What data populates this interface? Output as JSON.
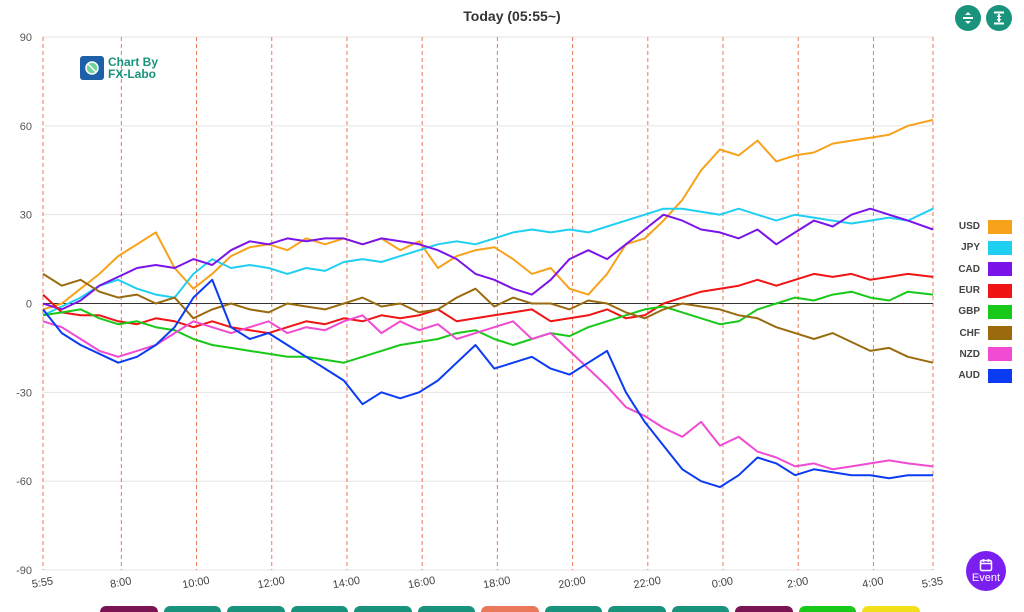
{
  "header": {
    "title": "Today  (05:55~)"
  },
  "logo": {
    "line1": "Chart By",
    "line2": "FX-Labo"
  },
  "toolbar": {
    "btn1_icon": "split-vertical-icon",
    "btn2_icon": "expand-vertical-icon"
  },
  "event_button": {
    "label": "Event",
    "icon": "calendar-icon"
  },
  "colors": {
    "USD": "#f7a21b",
    "JPY": "#1fd0f2",
    "CAD": "#7a14ea",
    "EUR": "#f01414",
    "GBP": "#18c91a",
    "CHF": "#9a6b0e",
    "NZD": "#f04bd2",
    "AUD": "#0b3cf2",
    "accent": "#19937c",
    "grid_vertical": "#e9795a"
  },
  "legend": [
    "USD",
    "JPY",
    "CAD",
    "EUR",
    "GBP",
    "CHF",
    "NZD",
    "AUD"
  ],
  "chart_data": {
    "type": "line",
    "title": "Today  (05:55~)",
    "xlabel": "",
    "ylabel": "",
    "ylim": [
      -90,
      90
    ],
    "yticks": [
      90,
      60,
      30,
      0,
      -30,
      -60,
      -90
    ],
    "xticks": [
      "5:55",
      "8:00",
      "10:00",
      "12:00",
      "14:00",
      "16:00",
      "18:00",
      "20:00",
      "22:00",
      "0:00",
      "2:00",
      "4:00",
      "5:35"
    ],
    "xtick_hours": [
      0,
      2.083,
      4.083,
      6.083,
      8.083,
      10.083,
      12.083,
      14.083,
      16.083,
      18.083,
      20.083,
      22.083,
      23.667
    ],
    "x_range_hours": [
      0,
      23.667
    ],
    "grid": true,
    "legend_position": "right",
    "series": [
      {
        "name": "USD",
        "x": [
          0,
          0.5,
          1,
          1.5,
          2,
          2.5,
          3,
          3.5,
          4,
          4.5,
          5,
          5.5,
          6,
          6.5,
          7,
          7.5,
          8,
          8.5,
          9,
          9.5,
          10,
          10.5,
          11,
          11.5,
          12,
          12.5,
          13,
          13.5,
          14,
          14.5,
          15,
          15.5,
          16,
          16.5,
          17,
          17.5,
          18,
          18.5,
          19,
          19.5,
          20,
          20.5,
          21,
          21.5,
          22,
          22.5,
          23,
          23.667
        ],
        "y": [
          -2,
          0,
          5,
          10,
          16,
          20,
          24,
          12,
          5,
          10,
          16,
          19,
          20,
          18,
          22,
          20,
          22,
          20,
          22,
          18,
          21,
          12,
          16,
          18,
          19,
          15,
          10,
          12,
          5,
          3,
          10,
          20,
          22,
          28,
          35,
          45,
          52,
          50,
          55,
          48,
          50,
          51,
          54,
          55,
          56,
          57,
          60,
          62
        ]
      },
      {
        "name": "JPY",
        "x": [
          0,
          0.5,
          1,
          1.5,
          2,
          2.5,
          3,
          3.5,
          4,
          4.5,
          5,
          5.5,
          6,
          6.5,
          7,
          7.5,
          8,
          8.5,
          9,
          9.5,
          10,
          10.5,
          11,
          11.5,
          12,
          12.5,
          13,
          13.5,
          14,
          14.5,
          15,
          15.5,
          16,
          16.5,
          17,
          17.5,
          18,
          18.5,
          19,
          19.5,
          20,
          20.5,
          21,
          21.5,
          22,
          22.5,
          23,
          23.667
        ],
        "y": [
          -4,
          -1,
          2,
          6,
          8,
          5,
          3,
          2,
          10,
          15,
          12,
          13,
          12,
          10,
          12,
          11,
          14,
          15,
          14,
          16,
          18,
          20,
          21,
          20,
          22,
          24,
          25,
          24,
          25,
          24,
          26,
          28,
          30,
          32,
          32,
          31,
          30,
          32,
          30,
          28,
          30,
          29,
          28,
          27,
          28,
          29,
          28,
          32
        ]
      },
      {
        "name": "CAD",
        "x": [
          0,
          0.5,
          1,
          1.5,
          2,
          2.5,
          3,
          3.5,
          4,
          4.5,
          5,
          5.5,
          6,
          6.5,
          7,
          7.5,
          8,
          8.5,
          9,
          9.5,
          10,
          10.5,
          11,
          11.5,
          12,
          12.5,
          13,
          13.5,
          14,
          14.5,
          15,
          15.5,
          16,
          16.5,
          17,
          17.5,
          18,
          18.5,
          19,
          19.5,
          20,
          20.5,
          21,
          21.5,
          22,
          22.5,
          23,
          23.667
        ],
        "y": [
          0,
          -2,
          1,
          6,
          9,
          12,
          13,
          12,
          15,
          13,
          18,
          21,
          20,
          22,
          21,
          22,
          22,
          20,
          22,
          21,
          20,
          18,
          15,
          10,
          8,
          5,
          3,
          8,
          15,
          18,
          15,
          20,
          25,
          30,
          28,
          25,
          24,
          22,
          25,
          20,
          24,
          28,
          26,
          30,
          32,
          30,
          28,
          25
        ]
      },
      {
        "name": "EUR",
        "x": [
          0,
          0.5,
          1,
          1.5,
          2,
          2.5,
          3,
          3.5,
          4,
          4.5,
          5,
          5.5,
          6,
          6.5,
          7,
          7.5,
          8,
          8.5,
          9,
          9.5,
          10,
          10.5,
          11,
          11.5,
          12,
          12.5,
          13,
          13.5,
          14,
          14.5,
          15,
          15.5,
          16,
          16.5,
          17,
          17.5,
          18,
          18.5,
          19,
          19.5,
          20,
          20.5,
          21,
          21.5,
          22,
          22.5,
          23,
          23.667
        ],
        "y": [
          3,
          -3,
          -4,
          -4,
          -6,
          -7,
          -5,
          -6,
          -8,
          -6,
          -8,
          -9,
          -10,
          -8,
          -6,
          -7,
          -5,
          -6,
          -4,
          -5,
          -4,
          -2,
          -6,
          -5,
          -4,
          -3,
          -2,
          -6,
          -5,
          -4,
          -2,
          -5,
          -4,
          0,
          2,
          4,
          5,
          6,
          8,
          6,
          8,
          10,
          9,
          10,
          8,
          9,
          10,
          9
        ]
      },
      {
        "name": "GBP",
        "x": [
          0,
          0.5,
          1,
          1.5,
          2,
          2.5,
          3,
          3.5,
          4,
          4.5,
          5,
          5.5,
          6,
          6.5,
          7,
          7.5,
          8,
          8.5,
          9,
          9.5,
          10,
          10.5,
          11,
          11.5,
          12,
          12.5,
          13,
          13.5,
          14,
          14.5,
          15,
          15.5,
          16,
          16.5,
          17,
          17.5,
          18,
          18.5,
          19,
          19.5,
          20,
          20.5,
          21,
          21.5,
          22,
          22.5,
          23,
          23.667
        ],
        "y": [
          -4,
          -3,
          -2,
          -5,
          -7,
          -6,
          -8,
          -9,
          -12,
          -14,
          -15,
          -16,
          -17,
          -18,
          -18,
          -19,
          -20,
          -18,
          -16,
          -14,
          -13,
          -12,
          -10,
          -9,
          -12,
          -14,
          -12,
          -10,
          -11,
          -8,
          -6,
          -4,
          -2,
          -1,
          -3,
          -5,
          -7,
          -6,
          -2,
          0,
          2,
          1,
          3,
          4,
          2,
          1,
          4,
          3
        ]
      },
      {
        "name": "CHF",
        "x": [
          0,
          0.5,
          1,
          1.5,
          2,
          2.5,
          3,
          3.5,
          4,
          4.5,
          5,
          5.5,
          6,
          6.5,
          7,
          7.5,
          8,
          8.5,
          9,
          9.5,
          10,
          10.5,
          11,
          11.5,
          12,
          12.5,
          13,
          13.5,
          14,
          14.5,
          15,
          15.5,
          16,
          16.5,
          17,
          17.5,
          18,
          18.5,
          19,
          19.5,
          20,
          20.5,
          21,
          21.5,
          22,
          22.5,
          23,
          23.667
        ],
        "y": [
          10,
          6,
          8,
          4,
          2,
          3,
          0,
          2,
          -5,
          -2,
          0,
          -2,
          -3,
          0,
          -1,
          -2,
          0,
          2,
          -1,
          0,
          -3,
          -2,
          2,
          5,
          -1,
          2,
          0,
          0,
          -2,
          1,
          0,
          -3,
          -5,
          -2,
          0,
          -1,
          -2,
          -4,
          -5,
          -8,
          -10,
          -12,
          -10,
          -13,
          -16,
          -15,
          -18,
          -20
        ]
      },
      {
        "name": "NZD",
        "x": [
          0,
          0.5,
          1,
          1.5,
          2,
          2.5,
          3,
          3.5,
          4,
          4.5,
          5,
          5.5,
          6,
          6.5,
          7,
          7.5,
          8,
          8.5,
          9,
          9.5,
          10,
          10.5,
          11,
          11.5,
          12,
          12.5,
          13,
          13.5,
          14,
          14.5,
          15,
          15.5,
          16,
          16.5,
          17,
          17.5,
          18,
          18.5,
          19,
          19.5,
          20,
          20.5,
          21,
          21.5,
          22,
          22.5,
          23,
          23.667
        ],
        "y": [
          -6,
          -8,
          -12,
          -16,
          -18,
          -16,
          -14,
          -10,
          -6,
          -8,
          -10,
          -8,
          -6,
          -10,
          -8,
          -9,
          -6,
          -4,
          -10,
          -6,
          -9,
          -7,
          -12,
          -10,
          -8,
          -6,
          -12,
          -10,
          -16,
          -22,
          -28,
          -35,
          -38,
          -42,
          -45,
          -40,
          -48,
          -45,
          -50,
          -52,
          -55,
          -54,
          -56,
          -55,
          -54,
          -53,
          -54,
          -55
        ]
      },
      {
        "name": "AUD",
        "x": [
          0,
          0.5,
          1,
          1.5,
          2,
          2.5,
          3,
          3.5,
          4,
          4.5,
          5,
          5.5,
          6,
          6.5,
          7,
          7.5,
          8,
          8.5,
          9,
          9.5,
          10,
          10.5,
          11,
          11.5,
          12,
          12.5,
          13,
          13.5,
          14,
          14.5,
          15,
          15.5,
          16,
          16.5,
          17,
          17.5,
          18,
          18.5,
          19,
          19.5,
          20,
          20.5,
          21,
          21.5,
          22,
          22.5,
          23,
          23.667
        ],
        "y": [
          -2,
          -10,
          -14,
          -17,
          -20,
          -18,
          -14,
          -8,
          2,
          8,
          -8,
          -12,
          -10,
          -14,
          -18,
          -22,
          -26,
          -34,
          -30,
          -32,
          -30,
          -26,
          -20,
          -14,
          -22,
          -20,
          -18,
          -22,
          -24,
          -20,
          -16,
          -30,
          -40,
          -48,
          -56,
          -60,
          -62,
          -58,
          -52,
          -54,
          -58,
          -56,
          -57,
          -58,
          -58,
          -59,
          -58,
          -58
        ]
      }
    ]
  }
}
